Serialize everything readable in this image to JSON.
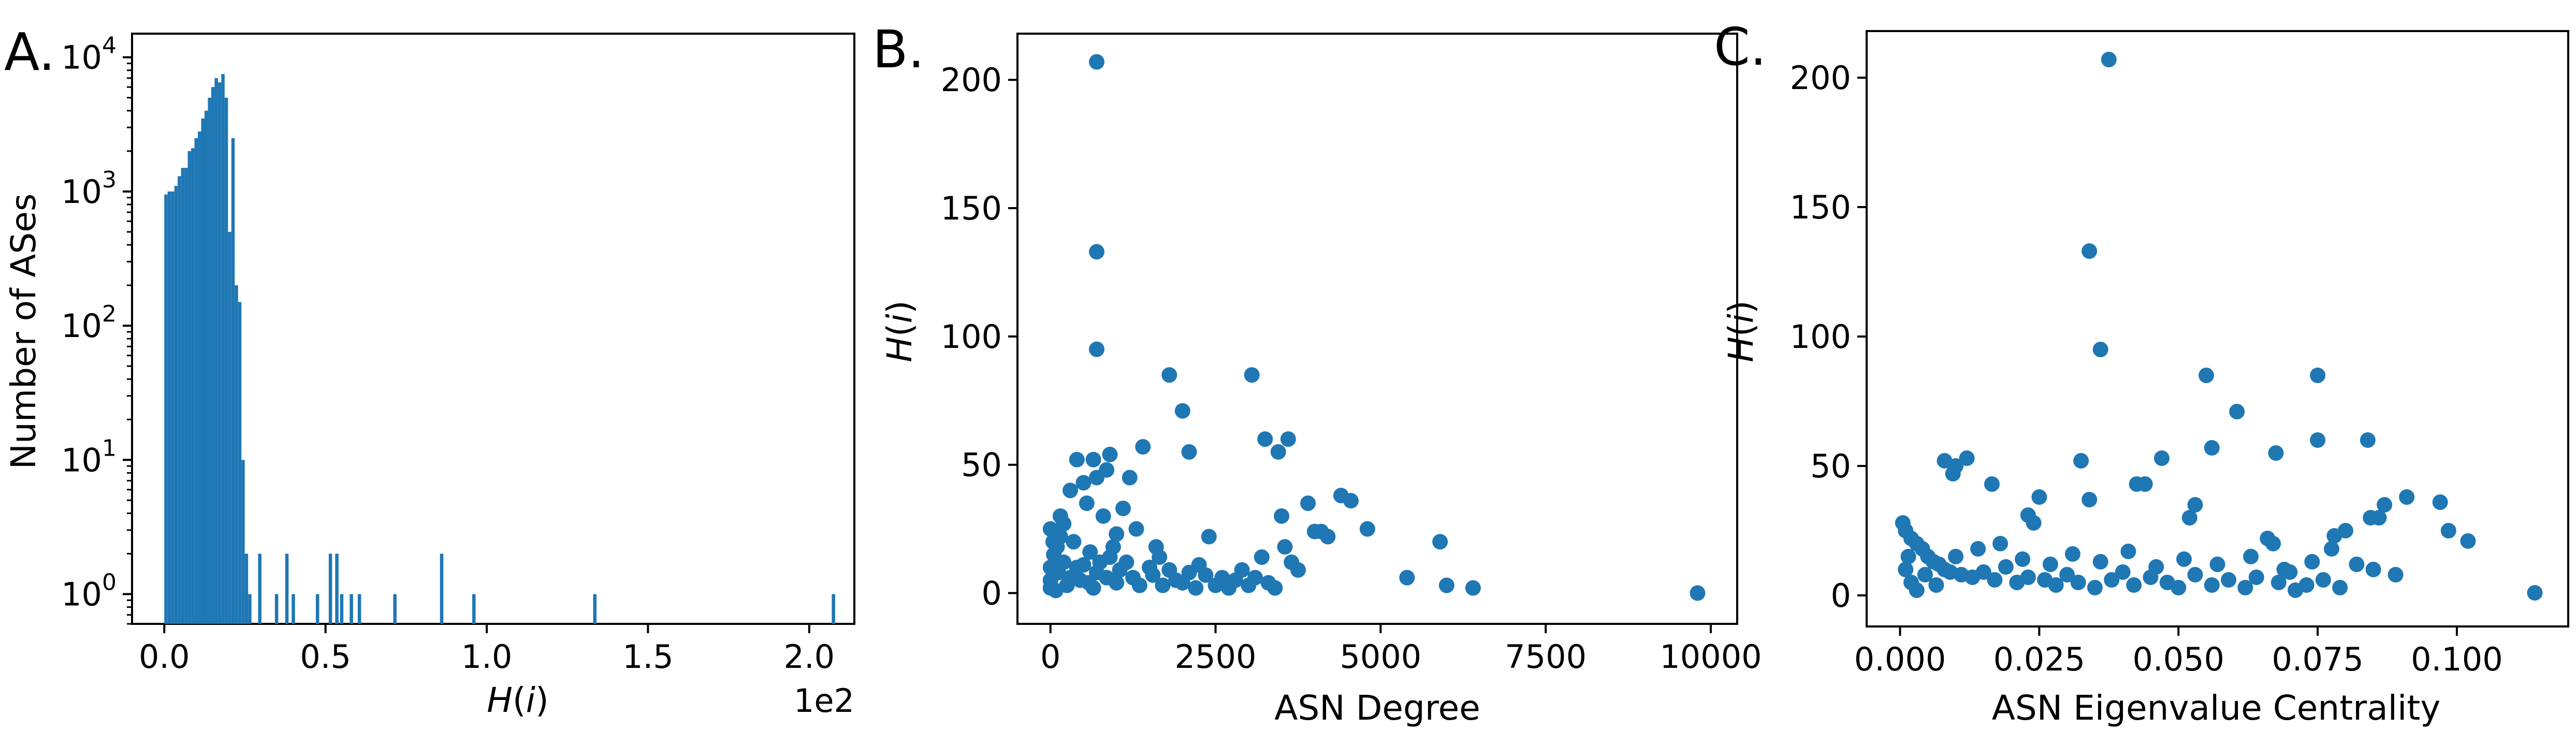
{
  "colors": {
    "accent": "#1f77b4"
  },
  "chart_data": [
    {
      "type": "bar",
      "panel_label": "A.",
      "xlabel": "H(i)",
      "ylabel": "Number of ASes",
      "xscale_note": "1e2",
      "yscale": "log",
      "xlim": [
        -0.1,
        2.14
      ],
      "ylim": [
        0.6,
        15000
      ],
      "xticks": [
        0.0,
        0.5,
        1.0,
        1.5,
        2.0
      ],
      "xtick_labels": [
        "0.0",
        "0.5",
        "1.0",
        "1.5",
        "2.0"
      ],
      "yticks": [
        {
          "base": "10",
          "exp": "0",
          "value": 1
        },
        {
          "base": "10",
          "exp": "1",
          "value": 10
        },
        {
          "base": "10",
          "exp": "2",
          "value": 100
        },
        {
          "base": "10",
          "exp": "3",
          "value": 1000
        },
        {
          "base": "10",
          "exp": "4",
          "value": 10000
        }
      ],
      "bin_width": 0.0104,
      "bins": [
        [
          0.0,
          950
        ],
        [
          0.0104,
          1000
        ],
        [
          0.0208,
          1000
        ],
        [
          0.0312,
          1100
        ],
        [
          0.0416,
          1300
        ],
        [
          0.052,
          1500
        ],
        [
          0.0624,
          1500
        ],
        [
          0.0728,
          2000
        ],
        [
          0.0832,
          2100
        ],
        [
          0.0936,
          2500
        ],
        [
          0.104,
          2800
        ],
        [
          0.1144,
          3500
        ],
        [
          0.1248,
          4000
        ],
        [
          0.1352,
          5000
        ],
        [
          0.1456,
          6000
        ],
        [
          0.156,
          7000
        ],
        [
          0.1664,
          6500
        ],
        [
          0.1768,
          7500
        ],
        [
          0.1872,
          5000
        ],
        [
          0.1976,
          500
        ],
        [
          0.208,
          2500
        ],
        [
          0.2184,
          200
        ],
        [
          0.2288,
          150
        ],
        [
          0.2392,
          10
        ],
        [
          0.2496,
          2
        ],
        [
          0.26,
          1
        ],
        [
          0.291,
          2
        ],
        [
          0.343,
          1
        ],
        [
          0.375,
          2
        ],
        [
          0.395,
          1
        ],
        [
          0.47,
          1
        ],
        [
          0.51,
          2
        ],
        [
          0.53,
          2
        ],
        [
          0.545,
          1
        ],
        [
          0.575,
          1
        ],
        [
          0.6,
          1
        ],
        [
          0.71,
          1
        ],
        [
          0.855,
          2
        ],
        [
          0.955,
          1
        ],
        [
          1.33,
          1
        ],
        [
          2.07,
          1
        ]
      ]
    },
    {
      "type": "scatter",
      "panel_label": "B.",
      "xlabel": "ASN Degree",
      "ylabel": "H(i)",
      "xlim": [
        -500,
        10400
      ],
      "ylim": [
        -12,
        218
      ],
      "xticks": [
        0,
        2500,
        5000,
        7500,
        10000
      ],
      "xtick_labels": [
        "0",
        "2500",
        "5000",
        "7500",
        "10000"
      ],
      "yticks": [
        0,
        50,
        100,
        150,
        200
      ],
      "ytick_labels": [
        "0",
        "50",
        "100",
        "150",
        "200"
      ],
      "points": [
        [
          700,
          207
        ],
        [
          700,
          133
        ],
        [
          700,
          95
        ],
        [
          1800,
          85
        ],
        [
          3050,
          85
        ],
        [
          2000,
          71
        ],
        [
          3250,
          60
        ],
        [
          3600,
          60
        ],
        [
          2100,
          55
        ],
        [
          3450,
          55
        ],
        [
          1400,
          57
        ],
        [
          900,
          54
        ],
        [
          400,
          52
        ],
        [
          650,
          52
        ],
        [
          500,
          43
        ],
        [
          850,
          48
        ],
        [
          700,
          45
        ],
        [
          1200,
          45
        ],
        [
          4400,
          38
        ],
        [
          4550,
          36
        ],
        [
          3900,
          35
        ],
        [
          3500,
          30
        ],
        [
          1100,
          33
        ],
        [
          4800,
          25
        ],
        [
          4000,
          24
        ],
        [
          4100,
          24
        ],
        [
          5900,
          20
        ],
        [
          2400,
          22
        ],
        [
          1600,
          18
        ],
        [
          1000,
          23
        ],
        [
          3650,
          12
        ],
        [
          3750,
          9
        ],
        [
          5400,
          6
        ],
        [
          6000,
          3
        ],
        [
          6400,
          2
        ],
        [
          9800,
          0
        ],
        [
          300,
          40
        ],
        [
          550,
          35
        ],
        [
          800,
          30
        ],
        [
          1300,
          25
        ],
        [
          200,
          27
        ],
        [
          150,
          22
        ],
        [
          100,
          18
        ],
        [
          350,
          20
        ],
        [
          600,
          16
        ],
        [
          900,
          14
        ],
        [
          1150,
          12
        ],
        [
          1500,
          10
        ],
        [
          1800,
          9
        ],
        [
          2100,
          8
        ],
        [
          2350,
          7
        ],
        [
          2600,
          6
        ],
        [
          2800,
          5
        ],
        [
          3100,
          6
        ],
        [
          3300,
          4
        ],
        [
          1000,
          4
        ],
        [
          1700,
          3
        ],
        [
          2200,
          2
        ],
        [
          2500,
          3
        ],
        [
          400,
          10
        ],
        [
          700,
          8
        ],
        [
          1250,
          6
        ],
        [
          1900,
          5
        ],
        [
          200,
          12
        ],
        [
          500,
          11
        ],
        [
          50,
          15
        ],
        [
          0,
          10
        ],
        [
          0,
          5
        ],
        [
          0,
          2
        ],
        [
          0,
          25
        ],
        [
          80,
          1
        ],
        [
          250,
          3
        ],
        [
          450,
          5
        ],
        [
          650,
          2
        ],
        [
          850,
          6
        ],
        [
          1050,
          9
        ],
        [
          1350,
          3
        ],
        [
          1550,
          7
        ],
        [
          2000,
          4
        ],
        [
          2700,
          2
        ],
        [
          3000,
          3
        ],
        [
          3400,
          2
        ],
        [
          120,
          8
        ],
        [
          300,
          6
        ],
        [
          580,
          4
        ],
        [
          750,
          12
        ],
        [
          950,
          18
        ],
        [
          1650,
          14
        ],
        [
          2250,
          11
        ],
        [
          2900,
          9
        ],
        [
          3200,
          14
        ],
        [
          3550,
          18
        ],
        [
          4200,
          22
        ],
        [
          150,
          30
        ],
        [
          40,
          20
        ]
      ]
    },
    {
      "type": "scatter",
      "panel_label": "C.",
      "xlabel": "ASN Eigenvalue Centrality",
      "ylabel": "H(i)",
      "xlim": [
        -0.006,
        0.12
      ],
      "ylim": [
        -12,
        218
      ],
      "xticks": [
        0.0,
        0.025,
        0.05,
        0.075,
        0.1
      ],
      "xtick_labels": [
        "0.000",
        "0.025",
        "0.050",
        "0.075",
        "0.100"
      ],
      "yticks": [
        0,
        50,
        100,
        150,
        200
      ],
      "ytick_labels": [
        "0",
        "50",
        "100",
        "150",
        "200"
      ],
      "points": [
        [
          0.0375,
          207
        ],
        [
          0.034,
          133
        ],
        [
          0.036,
          95
        ],
        [
          0.055,
          85
        ],
        [
          0.075,
          85
        ],
        [
          0.0605,
          71
        ],
        [
          0.075,
          60
        ],
        [
          0.084,
          60
        ],
        [
          0.056,
          57
        ],
        [
          0.0675,
          55
        ],
        [
          0.047,
          53
        ],
        [
          0.0325,
          52
        ],
        [
          0.008,
          52
        ],
        [
          0.012,
          53
        ],
        [
          0.01,
          50
        ],
        [
          0.0095,
          47
        ],
        [
          0.0165,
          43
        ],
        [
          0.044,
          43
        ],
        [
          0.0425,
          43
        ],
        [
          0.025,
          38
        ],
        [
          0.034,
          37
        ],
        [
          0.053,
          35
        ],
        [
          0.091,
          38
        ],
        [
          0.097,
          36
        ],
        [
          0.087,
          35
        ],
        [
          0.086,
          30
        ],
        [
          0.0845,
          30
        ],
        [
          0.023,
          31
        ],
        [
          0.024,
          28
        ],
        [
          0.052,
          30
        ],
        [
          0.0985,
          25
        ],
        [
          0.102,
          21
        ],
        [
          0.08,
          25
        ],
        [
          0.078,
          23
        ],
        [
          0.066,
          22
        ],
        [
          0.067,
          20
        ],
        [
          0.0775,
          18
        ],
        [
          0.082,
          12
        ],
        [
          0.085,
          10
        ],
        [
          0.089,
          8
        ],
        [
          0.114,
          1
        ],
        [
          0.071,
          2
        ],
        [
          0.0005,
          28
        ],
        [
          0.001,
          25
        ],
        [
          0.002,
          22
        ],
        [
          0.003,
          20
        ],
        [
          0.004,
          18
        ],
        [
          0.005,
          15
        ],
        [
          0.006,
          13
        ],
        [
          0.007,
          12
        ],
        [
          0.008,
          10
        ],
        [
          0.009,
          9
        ],
        [
          0.011,
          8
        ],
        [
          0.013,
          7
        ],
        [
          0.015,
          9
        ],
        [
          0.017,
          6
        ],
        [
          0.019,
          11
        ],
        [
          0.021,
          5
        ],
        [
          0.023,
          7
        ],
        [
          0.026,
          6
        ],
        [
          0.028,
          4
        ],
        [
          0.03,
          8
        ],
        [
          0.032,
          5
        ],
        [
          0.035,
          3
        ],
        [
          0.038,
          6
        ],
        [
          0.04,
          9
        ],
        [
          0.042,
          4
        ],
        [
          0.045,
          7
        ],
        [
          0.048,
          5
        ],
        [
          0.05,
          3
        ],
        [
          0.053,
          8
        ],
        [
          0.056,
          4
        ],
        [
          0.059,
          6
        ],
        [
          0.062,
          3
        ],
        [
          0.064,
          7
        ],
        [
          0.068,
          5
        ],
        [
          0.07,
          9
        ],
        [
          0.073,
          4
        ],
        [
          0.076,
          6
        ],
        [
          0.079,
          3
        ],
        [
          0.001,
          10
        ],
        [
          0.002,
          5
        ],
        [
          0.003,
          2
        ],
        [
          0.0015,
          15
        ],
        [
          0.0045,
          8
        ],
        [
          0.0065,
          4
        ],
        [
          0.01,
          15
        ],
        [
          0.014,
          18
        ],
        [
          0.018,
          20
        ],
        [
          0.022,
          14
        ],
        [
          0.027,
          12
        ],
        [
          0.031,
          16
        ],
        [
          0.036,
          13
        ],
        [
          0.041,
          17
        ],
        [
          0.046,
          11
        ],
        [
          0.051,
          14
        ],
        [
          0.057,
          12
        ],
        [
          0.063,
          15
        ],
        [
          0.069,
          10
        ],
        [
          0.074,
          13
        ]
      ]
    }
  ]
}
